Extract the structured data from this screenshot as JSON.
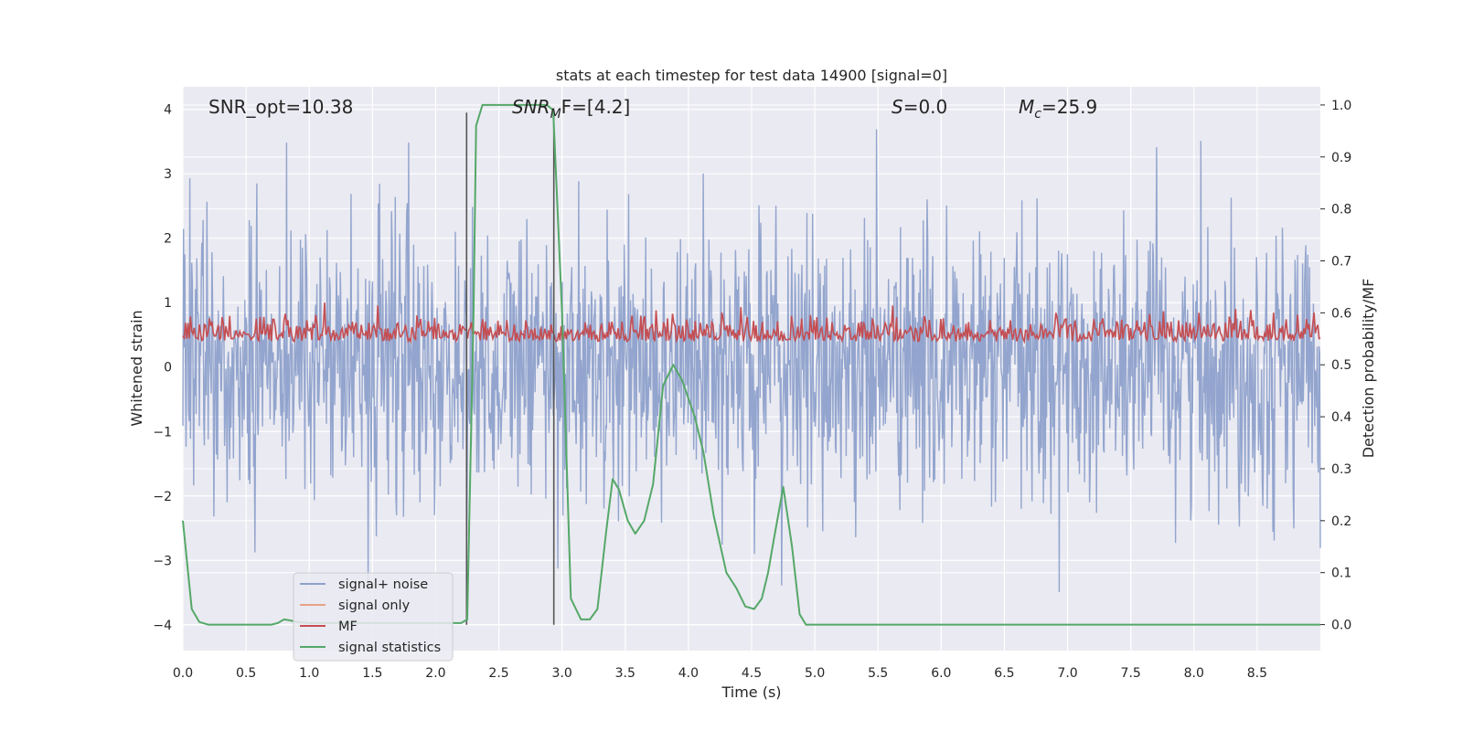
{
  "chart_data": {
    "type": "line",
    "title": "stats at each timestep for test data 14900 [signal=0]",
    "xlabel": "Time (s)",
    "ylabel_left": "Whitened strain",
    "ylabel_right": "Detection probability/MF",
    "xlim": [
      0.0,
      9.0
    ],
    "ylim_left": [
      -4.4,
      4.35
    ],
    "ylim_right": [
      -0.05,
      1.035
    ],
    "x_ticks": [
      "0.0",
      "0.5",
      "1.0",
      "1.5",
      "2.0",
      "2.5",
      "3.0",
      "3.5",
      "4.0",
      "4.5",
      "5.0",
      "5.5",
      "6.0",
      "6.5",
      "7.0",
      "7.5",
      "8.0",
      "8.5"
    ],
    "y_ticks_left": [
      "4",
      "3",
      "2",
      "1",
      "0",
      "−1",
      "−2",
      "−3",
      "−4"
    ],
    "y_ticks_right": [
      "1.0",
      "0.9",
      "0.8",
      "0.7",
      "0.6",
      "0.5",
      "0.4",
      "0.3",
      "0.2",
      "0.1",
      "0.0"
    ],
    "grid": true,
    "legend_position": "lower-left",
    "annotations": {
      "snr_opt": "SNR_opt=10.38",
      "snr_mf_main": "SNR",
      "snr_mf_sub": "M",
      "snr_mf_rest": "F=[4.2]",
      "s_main": "S",
      "s_rest": "=0.0",
      "mc_main": "M",
      "mc_sub": "c",
      "mc_rest": "=25.9"
    },
    "vertical_lines_x": [
      2.245,
      2.935
    ],
    "series": [
      {
        "name": "signal+ noise",
        "color": "#8ea1cb",
        "description_of_values": "whitened noise, approximately Gaussian with std ~1, range about -4 to 4, 1800 samples over 0-9 s",
        "n_samples": 1800,
        "approx_std": 1.0
      },
      {
        "name": "signal only",
        "color": "#e8a285",
        "values": []
      },
      {
        "name": "MF",
        "color": "#c44e52",
        "description_of_values": "matched filter output, fluctuating around 0.55 on right axis (0.5 to 0.62), 900 samples",
        "n_samples": 900,
        "approx_mean": 0.555
      },
      {
        "name": "signal statistics",
        "color": "#55a868",
        "x": [
          0.0,
          0.07,
          0.13,
          0.2,
          0.3,
          0.5,
          0.7,
          0.75,
          0.8,
          0.85,
          0.9,
          1.0,
          1.2,
          1.4,
          1.6,
          1.8,
          2.0,
          2.2,
          2.25,
          2.3,
          2.32,
          2.37,
          2.5,
          2.7,
          2.88,
          2.93,
          3.0,
          3.07,
          3.15,
          3.22,
          3.28,
          3.35,
          3.4,
          3.45,
          3.52,
          3.58,
          3.65,
          3.72,
          3.8,
          3.88,
          3.95,
          4.05,
          4.12,
          4.2,
          4.3,
          4.38,
          4.45,
          4.52,
          4.58,
          4.63,
          4.68,
          4.75,
          4.82,
          4.88,
          4.93,
          5.0,
          5.5,
          6.0,
          7.0,
          8.0,
          9.0
        ],
        "values": [
          0.2,
          0.03,
          0.005,
          0.0,
          0.0,
          0.0,
          0.0,
          0.003,
          0.01,
          0.008,
          0.005,
          0.003,
          0.003,
          0.003,
          0.003,
          0.003,
          0.003,
          0.003,
          0.01,
          0.6,
          0.96,
          1.0,
          1.0,
          1.0,
          1.0,
          0.99,
          0.6,
          0.05,
          0.01,
          0.01,
          0.03,
          0.18,
          0.28,
          0.26,
          0.2,
          0.175,
          0.2,
          0.27,
          0.46,
          0.5,
          0.47,
          0.4,
          0.33,
          0.21,
          0.1,
          0.07,
          0.035,
          0.03,
          0.05,
          0.1,
          0.17,
          0.265,
          0.15,
          0.02,
          0.0,
          0.0,
          0.0,
          0.0,
          0.0,
          0.0,
          0.0
        ]
      }
    ]
  },
  "colors": {
    "plot_background": "#eaeaf2",
    "grid": "#ffffff",
    "text": "#262626",
    "vline": "#555555"
  }
}
